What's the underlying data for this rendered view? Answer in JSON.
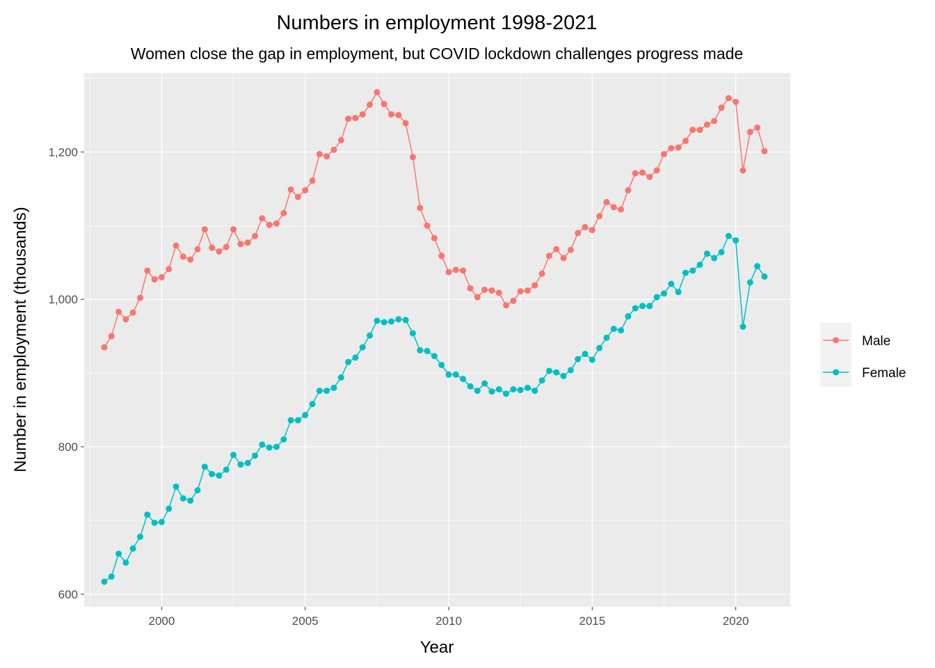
{
  "chart_data": {
    "type": "line",
    "title": "Numbers in employment 1998-2021",
    "subtitle": "Women close the gap in employment, but COVID lockdown challenges progress made",
    "xlabel": "Year",
    "ylabel": "Number in employment (thousands)",
    "xlim": [
      1997.3,
      2021.9
    ],
    "ylim": [
      583,
      1307
    ],
    "x_ticks": [
      2000,
      2005,
      2010,
      2015,
      2020
    ],
    "x_tick_labels": [
      "2000",
      "2005",
      "2010",
      "2015",
      "2020"
    ],
    "y_ticks": [
      600,
      800,
      1000,
      1200
    ],
    "y_tick_labels": [
      "600",
      "800",
      "1,000",
      "1,200"
    ],
    "grid": true,
    "legend_position": "right",
    "x_start": 1998.0,
    "x_step": 0.25,
    "series": [
      {
        "name": "Male",
        "color": "#F8766D",
        "values": [
          935,
          950,
          983,
          973,
          982,
          1002,
          1039,
          1027,
          1030,
          1041,
          1073,
          1058,
          1054,
          1068,
          1095,
          1070,
          1065,
          1071,
          1095,
          1075,
          1077,
          1086,
          1110,
          1101,
          1103,
          1117,
          1149,
          1139,
          1148,
          1161,
          1197,
          1194,
          1203,
          1216,
          1245,
          1246,
          1251,
          1264,
          1281,
          1265,
          1251,
          1250,
          1239,
          1193,
          1124,
          1100,
          1083,
          1059,
          1037,
          1040,
          1039,
          1015,
          1003,
          1013,
          1012,
          1009,
          992,
          998,
          1011,
          1012,
          1019,
          1035,
          1059,
          1068,
          1056,
          1067,
          1090,
          1098,
          1094,
          1113,
          1132,
          1125,
          1122,
          1148,
          1171,
          1172,
          1166,
          1175,
          1197,
          1205,
          1206,
          1215,
          1230,
          1230,
          1237,
          1242,
          1260,
          1273,
          1268,
          1175,
          1227,
          1233,
          1201
        ]
      },
      {
        "name": "Female",
        "color": "#00BFC4",
        "values": [
          617,
          624,
          655,
          643,
          662,
          678,
          708,
          697,
          698,
          716,
          746,
          730,
          727,
          741,
          773,
          763,
          761,
          769,
          789,
          776,
          778,
          788,
          803,
          799,
          800,
          810,
          836,
          836,
          843,
          858,
          876,
          876,
          880,
          894,
          915,
          921,
          935,
          951,
          971,
          969,
          970,
          973,
          972,
          954,
          931,
          930,
          923,
          911,
          898,
          898,
          892,
          882,
          876,
          886,
          875,
          878,
          872,
          878,
          877,
          880,
          876,
          890,
          903,
          901,
          896,
          904,
          919,
          926,
          918,
          934,
          948,
          960,
          958,
          977,
          988,
          991,
          991,
          1003,
          1008,
          1021,
          1010,
          1036,
          1039,
          1047,
          1062,
          1056,
          1064,
          1086,
          1080,
          963,
          1023,
          1045,
          1031
        ]
      }
    ]
  }
}
